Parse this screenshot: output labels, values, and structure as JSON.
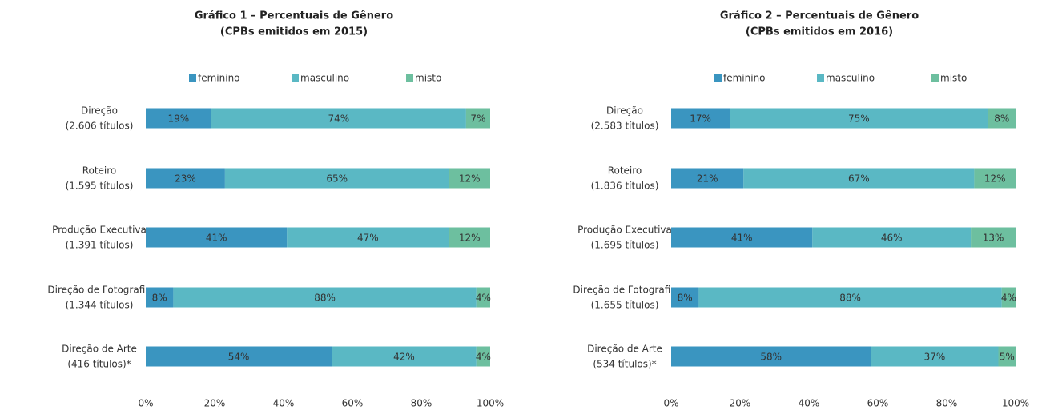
{
  "chart_data": [
    {
      "type": "bar",
      "orientation": "horizontal",
      "stacked": true,
      "title": "Gráfico 1 – Percentuais de Gênero",
      "subtitle": "(CPBs emitidos em 2015)",
      "categories": [
        [
          "Direção",
          "(2.606 títulos)"
        ],
        [
          "Roteiro",
          "(1.595 títulos)"
        ],
        [
          "Produção Executiva",
          "(1.391 títulos)"
        ],
        [
          "Direção de Fotografia",
          "(1.344 títulos)"
        ],
        [
          "Direção de Arte",
          "(416 títulos)*"
        ]
      ],
      "series": [
        {
          "name": "feminino",
          "color": "#3a95c0",
          "values": [
            19,
            23,
            41,
            8,
            54
          ],
          "value_labels": [
            "19%",
            "23%",
            "41%",
            "8%",
            "54%"
          ]
        },
        {
          "name": "masculino",
          "color": "#5ab8c4",
          "values": [
            74,
            65,
            47,
            88,
            42
          ],
          "value_labels": [
            "74%",
            "65%",
            "47%",
            "88%",
            "42%"
          ]
        },
        {
          "name": "misto",
          "color": "#6dbf9f",
          "values": [
            7,
            12,
            12,
            4,
            4
          ],
          "value_labels": [
            "7%",
            "12%",
            "12%",
            "4%",
            "4%"
          ]
        }
      ],
      "xlim": [
        0,
        100
      ],
      "xticks": [
        {
          "value": 0,
          "label": "0%"
        },
        {
          "value": 20,
          "label": "20%"
        },
        {
          "value": 40,
          "label": "40%"
        },
        {
          "value": 60,
          "label": "60%"
        },
        {
          "value": 80,
          "label": "80%"
        },
        {
          "value": 100,
          "label": "100%"
        }
      ],
      "legend": "top"
    },
    {
      "type": "bar",
      "orientation": "horizontal",
      "stacked": true,
      "title": "Gráfico 2 – Percentuais de Gênero",
      "subtitle": "(CPBs emitidos em 2016)",
      "categories": [
        [
          "Direção",
          "(2.583 títulos)"
        ],
        [
          "Roteiro",
          "(1.836 títulos)"
        ],
        [
          "Produção Executiva",
          "(1.695 títulos)"
        ],
        [
          "Direção de Fotografia",
          "(1.655 títulos)"
        ],
        [
          "Direção de Arte",
          "(534 títulos)*"
        ]
      ],
      "series": [
        {
          "name": "feminino",
          "color": "#3a95c0",
          "values": [
            17,
            21,
            41,
            8,
            58
          ],
          "value_labels": [
            "17%",
            "21%",
            "41%",
            "8%",
            "58%"
          ]
        },
        {
          "name": "masculino",
          "color": "#5ab8c4",
          "values": [
            75,
            67,
            46,
            88,
            37
          ],
          "value_labels": [
            "75%",
            "67%",
            "46%",
            "88%",
            "37%"
          ]
        },
        {
          "name": "misto",
          "color": "#6dbf9f",
          "values": [
            8,
            12,
            13,
            4,
            5
          ],
          "value_labels": [
            "8%",
            "12%",
            "13%",
            "4%",
            "5%"
          ]
        }
      ],
      "xlim": [
        0,
        100
      ],
      "xticks": [
        {
          "value": 0,
          "label": "0%"
        },
        {
          "value": 20,
          "label": "20%"
        },
        {
          "value": 40,
          "label": "40%"
        },
        {
          "value": 60,
          "label": "60%"
        },
        {
          "value": 80,
          "label": "80%"
        },
        {
          "value": 100,
          "label": "100%"
        }
      ],
      "legend": "top"
    }
  ]
}
